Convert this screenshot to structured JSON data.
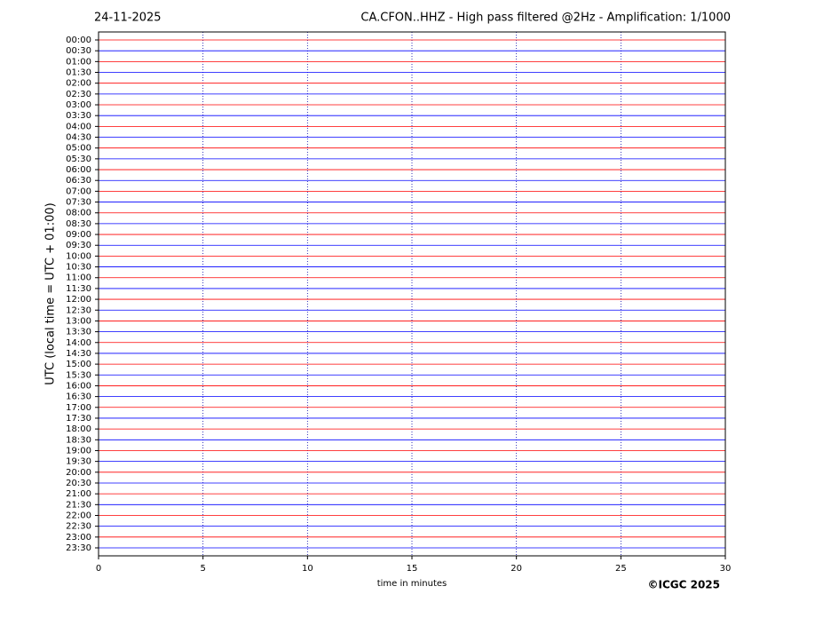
{
  "chart_data": {
    "type": "helicorder",
    "title_left": "24-11-2025",
    "title": "CA.CFON..HHZ - High pass filtered @2Hz - Amplification: 1/1000",
    "xlabel": "time in minutes",
    "ylabel": "UTC (local time = UTC + 01:00)",
    "copyright": "©ICGC 2025",
    "categories": [
      "00:00",
      "00:30",
      "01:00",
      "01:30",
      "02:00",
      "02:30",
      "03:00",
      "03:30",
      "04:00",
      "04:30",
      "05:00",
      "05:30",
      "06:00",
      "06:30",
      "07:00",
      "07:30",
      "08:00",
      "08:30",
      "09:00",
      "09:30",
      "10:00",
      "10:30",
      "11:00",
      "11:30",
      "12:00",
      "12:30",
      "13:00",
      "13:30",
      "14:00",
      "14:30",
      "15:00",
      "15:30",
      "16:00",
      "16:30",
      "17:00",
      "17:30",
      "18:00",
      "18:30",
      "19:00",
      "19:30",
      "20:00",
      "20:30",
      "21:00",
      "21:30",
      "22:00",
      "22:30",
      "23:00",
      "23:30"
    ],
    "colors": [
      "#ff0000",
      "#0000ff"
    ],
    "xlim": [
      0,
      30
    ],
    "xticks": [
      0,
      5,
      10,
      15,
      20,
      25,
      30
    ],
    "grid": true
  }
}
